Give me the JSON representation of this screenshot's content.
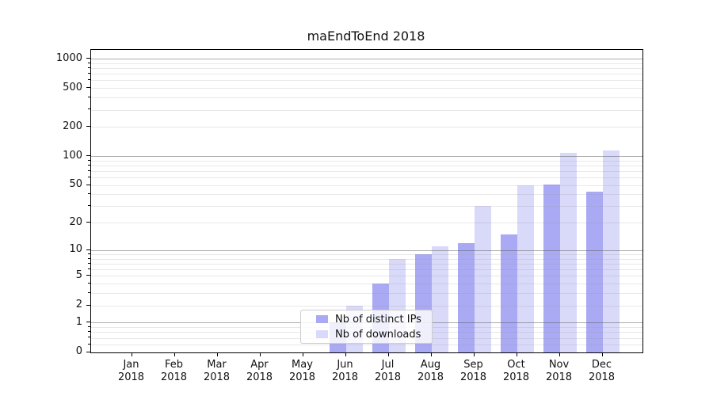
{
  "chart_data": {
    "type": "bar",
    "title": "maEndToEnd 2018",
    "categories": [
      "Jan",
      "Feb",
      "Mar",
      "Apr",
      "May",
      "Jun",
      "Jul",
      "Aug",
      "Sep",
      "Oct",
      "Nov",
      "Dec"
    ],
    "year": "2018",
    "series": [
      {
        "name": "Nb of distinct IPs",
        "color": "#a9a9f4",
        "values": [
          0,
          0,
          0,
          0,
          0,
          1,
          4,
          9,
          12,
          15,
          51,
          43
        ]
      },
      {
        "name": "Nb of downloads",
        "color": "#d9d9fa",
        "values": [
          0,
          0,
          0,
          0,
          0,
          2,
          8,
          11,
          30,
          50,
          108,
          115
        ]
      }
    ],
    "yscale": "log10(1+v), 0 at baseline",
    "ytick_labels": [
      "0",
      "1",
      "2",
      "5",
      "10",
      "20",
      "50",
      "100",
      "200",
      "500",
      "1000"
    ],
    "ytick_values": [
      0,
      1,
      2,
      5,
      10,
      20,
      50,
      100,
      200,
      500,
      1000
    ],
    "ylim": [
      0,
      1230
    ],
    "xlabel": "",
    "ylabel": "",
    "grid": "horizontal major (1,10,100,1000) dark gray + log minors light gray, drawn over bars",
    "legend": {
      "position": "lower center-left inside plot",
      "entries": [
        "Nb of distinct IPs",
        "Nb of downloads"
      ]
    },
    "colors": {
      "major_grid": "#acacac",
      "minor_grid": "#e7e7e7",
      "axis": "#000000",
      "background": "#ffffff"
    }
  }
}
